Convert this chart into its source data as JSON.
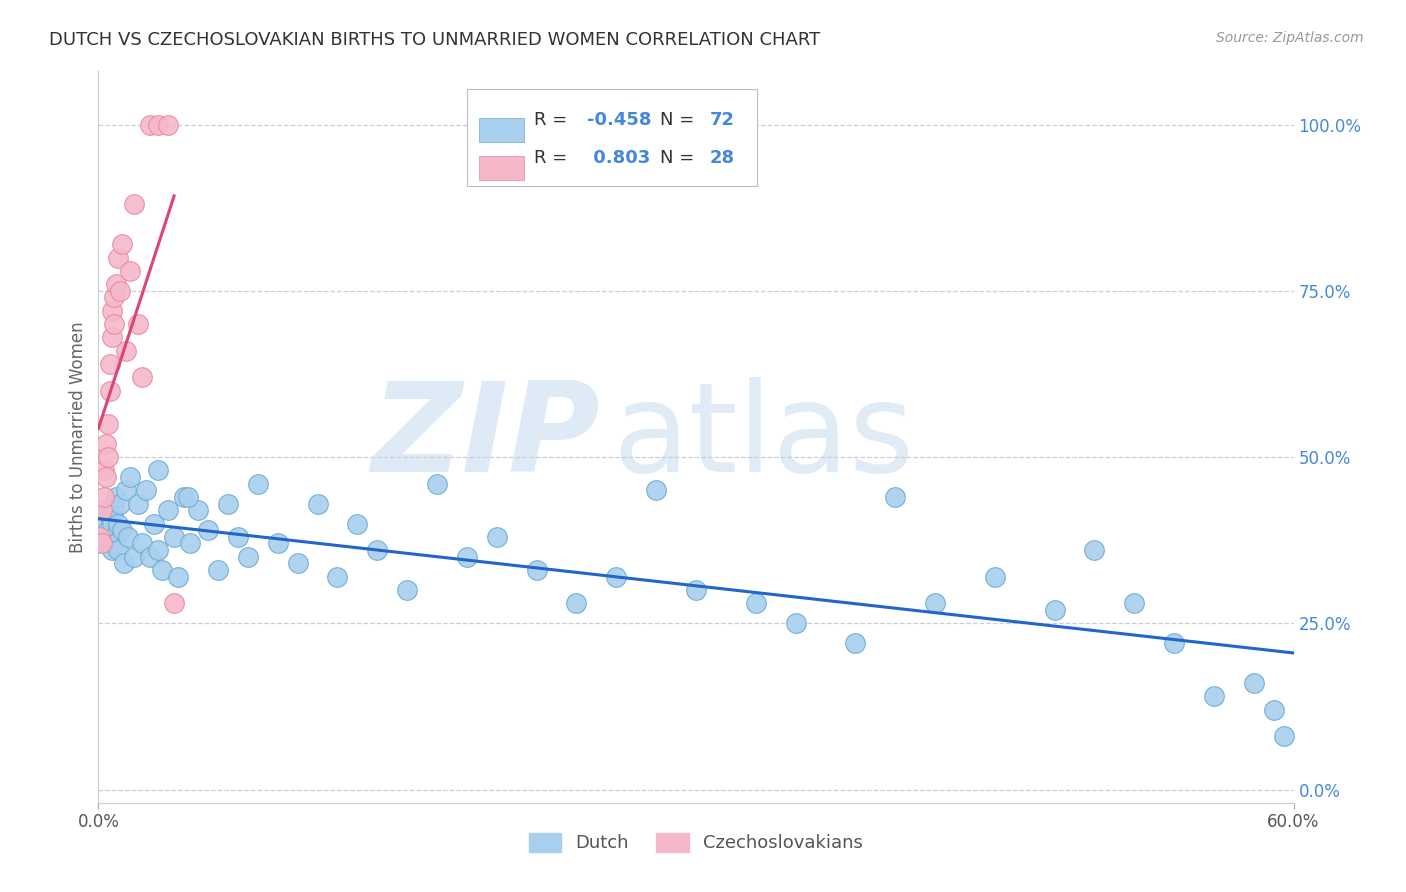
{
  "title": "DUTCH VS CZECHOSLOVAKIAN BIRTHS TO UNMARRIED WOMEN CORRELATION CHART",
  "source": "Source: ZipAtlas.com",
  "ylabel": "Births to Unmarried Women",
  "watermark_zip": "ZIP",
  "watermark_atlas": "atlas",
  "xlim": [
    0.0,
    0.6
  ],
  "ylim": [
    -0.02,
    1.08
  ],
  "yticks": [
    0.0,
    0.25,
    0.5,
    0.75,
    1.0
  ],
  "ytick_labels": [
    "0.0%",
    "25.0%",
    "50.0%",
    "75.0%",
    "100.0%"
  ],
  "xtick_labels": [
    "0.0%",
    "60.0%"
  ],
  "xtick_positions": [
    0.0,
    0.6
  ],
  "legend_blue_R": "-0.458",
  "legend_blue_N": "72",
  "legend_pink_R": " 0.803",
  "legend_pink_N": "28",
  "legend_blue_label": "Dutch",
  "legend_pink_label": "Czechoslovakians",
  "blue_scatter_color": "#A8D0EE",
  "blue_edge_color": "#6AAAD4",
  "blue_line_color": "#2266CC",
  "pink_scatter_color": "#F5B8C8",
  "pink_edge_color": "#E888A0",
  "pink_line_color": "#DD4477",
  "title_color": "#333333",
  "right_axis_color": "#4488DD",
  "grid_color": "#CCCCDD",
  "source_color": "#999999",
  "dutch_x": [
    0.002,
    0.003,
    0.004,
    0.004,
    0.005,
    0.006,
    0.006,
    0.007,
    0.007,
    0.008,
    0.008,
    0.009,
    0.009,
    0.01,
    0.01,
    0.011,
    0.012,
    0.013,
    0.014,
    0.015,
    0.016,
    0.018,
    0.02,
    0.022,
    0.024,
    0.026,
    0.028,
    0.03,
    0.032,
    0.035,
    0.038,
    0.04,
    0.043,
    0.046,
    0.05,
    0.055,
    0.06,
    0.065,
    0.07,
    0.075,
    0.08,
    0.09,
    0.1,
    0.11,
    0.12,
    0.13,
    0.14,
    0.155,
    0.17,
    0.185,
    0.2,
    0.22,
    0.24,
    0.26,
    0.28,
    0.3,
    0.33,
    0.35,
    0.38,
    0.4,
    0.42,
    0.45,
    0.48,
    0.5,
    0.52,
    0.54,
    0.56,
    0.58,
    0.59,
    0.595,
    0.03,
    0.045
  ],
  "dutch_y": [
    0.37,
    0.4,
    0.38,
    0.42,
    0.39,
    0.41,
    0.37,
    0.4,
    0.36,
    0.42,
    0.38,
    0.37,
    0.44,
    0.4,
    0.36,
    0.43,
    0.39,
    0.34,
    0.45,
    0.38,
    0.47,
    0.35,
    0.43,
    0.37,
    0.45,
    0.35,
    0.4,
    0.36,
    0.33,
    0.42,
    0.38,
    0.32,
    0.44,
    0.37,
    0.42,
    0.39,
    0.33,
    0.43,
    0.38,
    0.35,
    0.46,
    0.37,
    0.34,
    0.43,
    0.32,
    0.4,
    0.36,
    0.3,
    0.46,
    0.35,
    0.38,
    0.33,
    0.28,
    0.32,
    0.45,
    0.3,
    0.28,
    0.25,
    0.22,
    0.44,
    0.28,
    0.32,
    0.27,
    0.36,
    0.28,
    0.22,
    0.14,
    0.16,
    0.12,
    0.08,
    0.48,
    0.44
  ],
  "czech_x": [
    0.001,
    0.002,
    0.002,
    0.003,
    0.003,
    0.004,
    0.004,
    0.005,
    0.005,
    0.006,
    0.006,
    0.007,
    0.007,
    0.008,
    0.008,
    0.009,
    0.01,
    0.011,
    0.012,
    0.014,
    0.016,
    0.018,
    0.02,
    0.022,
    0.026,
    0.03,
    0.035,
    0.038
  ],
  "czech_y": [
    0.38,
    0.42,
    0.37,
    0.48,
    0.44,
    0.52,
    0.47,
    0.55,
    0.5,
    0.6,
    0.64,
    0.68,
    0.72,
    0.74,
    0.7,
    0.76,
    0.8,
    0.75,
    0.82,
    0.66,
    0.78,
    0.88,
    0.7,
    0.62,
    1.0,
    1.0,
    1.0,
    0.28
  ]
}
